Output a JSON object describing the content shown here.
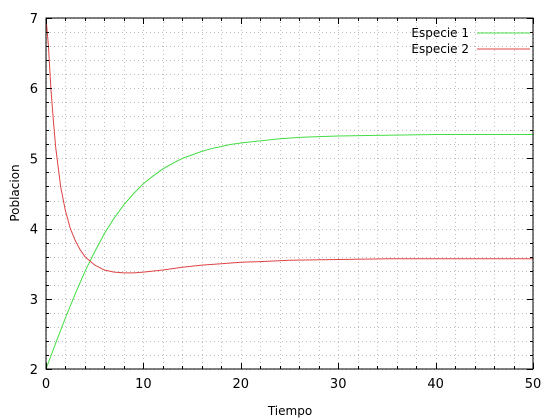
{
  "chart_data": {
    "type": "line",
    "title": "",
    "xlabel": "Tiempo",
    "ylabel": "Poblacion",
    "xlim": [
      0,
      50
    ],
    "ylim": [
      2,
      7
    ],
    "xticks": [
      0,
      10,
      20,
      30,
      40,
      50
    ],
    "yticks": [
      2,
      3,
      4,
      5,
      6,
      7
    ],
    "grid": true,
    "legend": "top-right",
    "series": [
      {
        "name": "Especie 1",
        "color": "#44dd44",
        "x": [
          0,
          1,
          2,
          3,
          4,
          5,
          6,
          7,
          8,
          9,
          10,
          11,
          12,
          13,
          14,
          15,
          16,
          17,
          18,
          19,
          20,
          22,
          24,
          26,
          28,
          30,
          35,
          40,
          45,
          50
        ],
        "y": [
          2.0,
          2.37,
          2.73,
          3.07,
          3.39,
          3.67,
          3.93,
          4.15,
          4.34,
          4.5,
          4.64,
          4.75,
          4.85,
          4.93,
          5.0,
          5.05,
          5.1,
          5.14,
          5.17,
          5.2,
          5.22,
          5.25,
          5.28,
          5.3,
          5.31,
          5.32,
          5.33,
          5.34,
          5.34,
          5.34
        ]
      },
      {
        "name": "Especie 2",
        "color": "#dd4444",
        "x": [
          0,
          0.25,
          0.5,
          0.75,
          1,
          1.5,
          2,
          2.5,
          3,
          3.5,
          4,
          5,
          6,
          7,
          8,
          9,
          10,
          12,
          14,
          16,
          18,
          20,
          22,
          25,
          30,
          35,
          40,
          45,
          50
        ],
        "y": [
          7.0,
          6.6,
          6.0,
          5.55,
          5.15,
          4.6,
          4.25,
          4.0,
          3.83,
          3.7,
          3.6,
          3.48,
          3.41,
          3.38,
          3.37,
          3.37,
          3.38,
          3.41,
          3.45,
          3.48,
          3.5,
          3.52,
          3.53,
          3.55,
          3.56,
          3.57,
          3.57,
          3.57,
          3.57
        ]
      }
    ]
  }
}
